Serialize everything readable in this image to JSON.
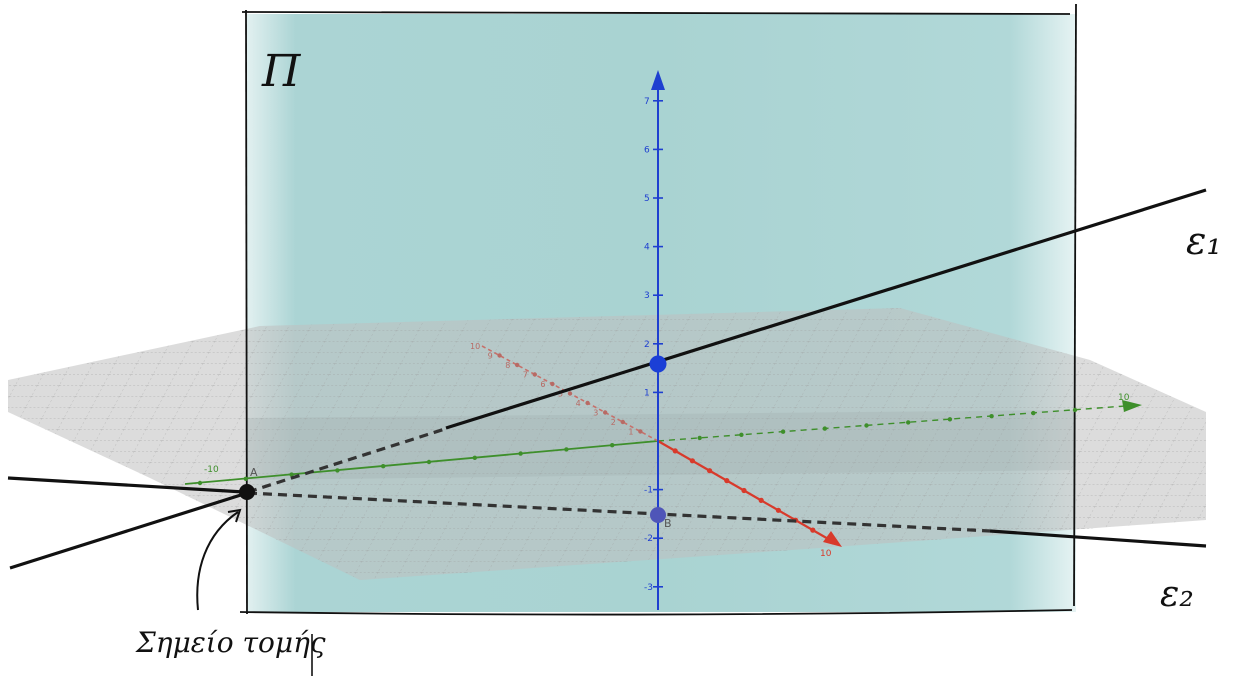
{
  "labels": {
    "plane": "Π",
    "line1": "ε₁",
    "line2": "ε₂",
    "intersection": "Σημείο τομής",
    "point_a": "A",
    "point_b": "B"
  },
  "axes": {
    "z_ticks": [
      "7",
      "6",
      "5",
      "4",
      "3",
      "2",
      "1",
      "-1",
      "-2",
      "-3"
    ],
    "y_ticks": [
      "-10",
      "10"
    ],
    "x_ticks": [
      "10",
      "9",
      "8",
      "7",
      "6",
      "5",
      "4",
      "3",
      "2",
      "1"
    ],
    "x_end_label": "10",
    "colors": {
      "x": "#d83a2b",
      "y": "#3e8f2b",
      "z": "#1e3fd0"
    }
  },
  "colors": {
    "plane_fill": "#a7d3d2",
    "ground_grid": "#bdbdbd",
    "line_black": "#111111",
    "point_blue": "#1b3fd6"
  }
}
